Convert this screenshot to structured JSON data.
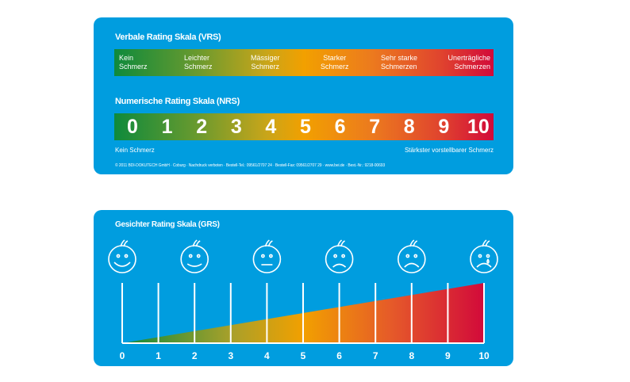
{
  "vrs": {
    "title": "Verbale Rating Skala (VRS)",
    "labels": [
      {
        "l1": "Kein",
        "l2": "Schmerz"
      },
      {
        "l1": "Leichter",
        "l2": "Schmerz"
      },
      {
        "l1": "Mässiger",
        "l2": "Schmerz"
      },
      {
        "l1": "Starker",
        "l2": "Schmerz"
      },
      {
        "l1": "Sehr starke",
        "l2": "Schmerzen"
      },
      {
        "l1": "Unerträgliche",
        "l2": "Schmerzen"
      }
    ]
  },
  "nrs": {
    "title": "Numerische Rating Skala (NRS)",
    "numbers": [
      "0",
      "1",
      "2",
      "3",
      "4",
      "5",
      "6",
      "7",
      "8",
      "9",
      "10"
    ],
    "min_label": "Kein Schmerz",
    "max_label": "Stärkster vorstellbarer Schmerz"
  },
  "footer": "© 2011 BDI-DOKUTECH GmbH · Coburg · Nachdruck verboten · Bestell-Tel.: 09561/2707 24 · Bestell-Fax: 09561/2707 29 · www.bei.de · Best.-Nr.: 9218-00693",
  "grs": {
    "title": "Gesichter Rating Skala (GRS)",
    "numbers": [
      "0",
      "1",
      "2",
      "3",
      "4",
      "5",
      "6",
      "7",
      "8",
      "9",
      "10"
    ],
    "faces": [
      "very-happy-face-icon",
      "happy-face-icon",
      "neutral-face-icon",
      "sad-face-icon",
      "very-sad-face-icon",
      "crying-face-icon"
    ]
  },
  "colors": {
    "card": "#009ddf",
    "green": "#0e8a3c",
    "yellow": "#f2a000",
    "red": "#d20a3a"
  }
}
